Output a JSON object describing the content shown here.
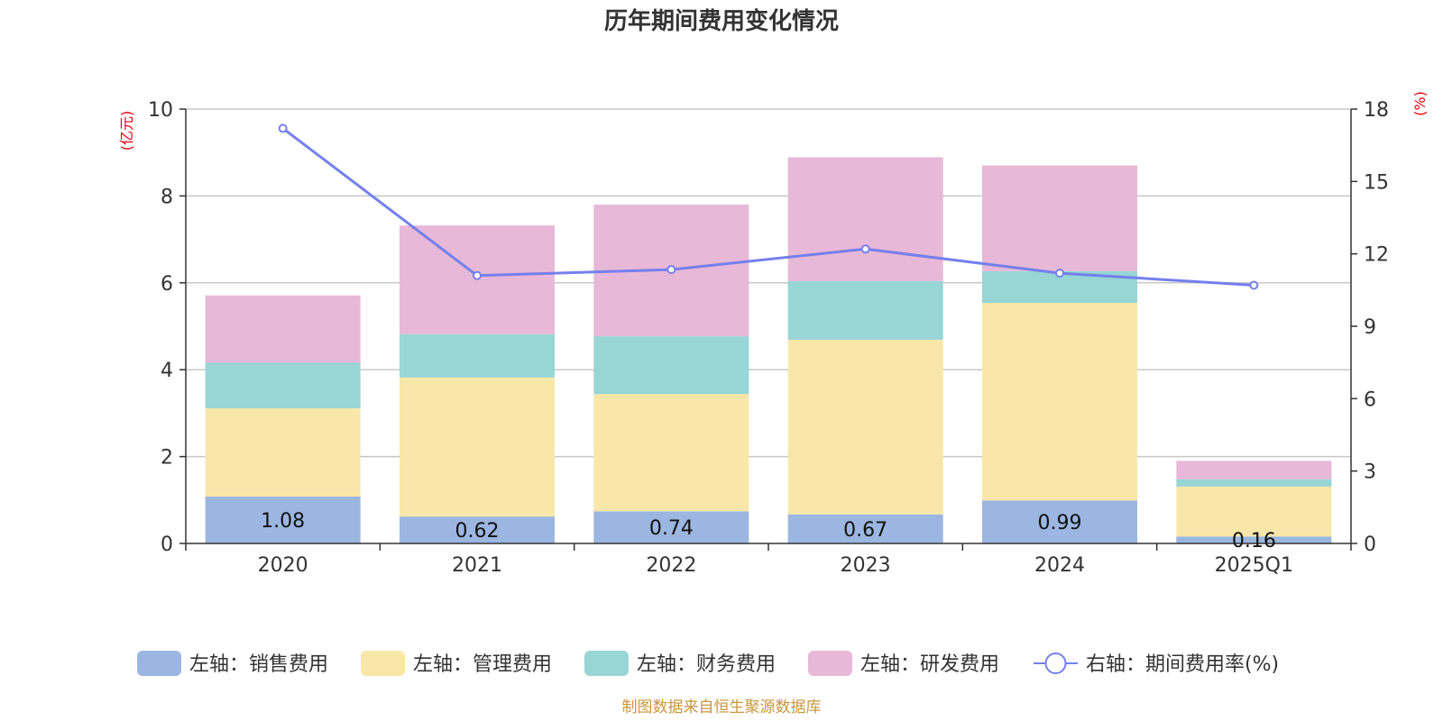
{
  "chart_data": {
    "type": "bar",
    "stacked": true,
    "title": "历年期间费用变化情况",
    "categories": [
      "2020",
      "2021",
      "2022",
      "2023",
      "2024",
      "2025Q1"
    ],
    "left_axis": {
      "unit": "(亿元)",
      "ylim": [
        0,
        10
      ],
      "ticks": [
        0,
        2,
        4,
        6,
        8,
        10
      ]
    },
    "right_axis": {
      "unit": "(%)",
      "ylim": [
        0,
        18
      ],
      "ticks": [
        0,
        3,
        6,
        9,
        12,
        15,
        18
      ]
    },
    "series": [
      {
        "name": "左轴：销售费用",
        "color": "#9bb6e0",
        "axis": "left",
        "values": [
          1.08,
          0.62,
          0.74,
          0.67,
          0.99,
          0.16
        ]
      },
      {
        "name": "左轴：管理费用",
        "color": "#f8e7a8",
        "axis": "left",
        "values": [
          2.03,
          3.2,
          2.7,
          4.02,
          4.55,
          1.15
        ]
      },
      {
        "name": "左轴：财务费用",
        "color": "#98d5d5",
        "axis": "left",
        "values": [
          1.05,
          1.0,
          1.33,
          1.35,
          0.73,
          0.17
        ]
      },
      {
        "name": "左轴：研发费用",
        "color": "#e8b8d8",
        "axis": "left",
        "values": [
          1.55,
          2.5,
          3.03,
          2.85,
          2.43,
          0.42
        ]
      }
    ],
    "line_series": {
      "name": "右轴：期间费用率(%)",
      "color": "#7580ed",
      "axis": "right",
      "values": [
        17.2,
        11.1,
        11.35,
        12.2,
        11.2,
        10.7
      ]
    },
    "data_labels": [
      "1.08",
      "0.62",
      "0.74",
      "0.67",
      "0.99",
      "0.16"
    ]
  },
  "source": "制图数据来自恒生聚源数据库"
}
